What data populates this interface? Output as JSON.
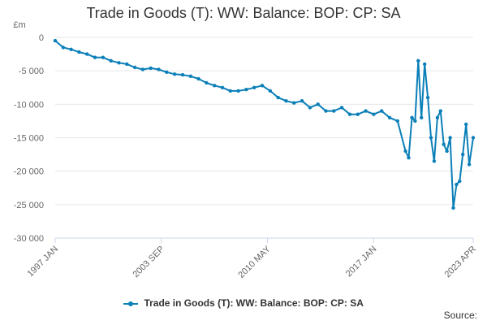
{
  "chart_data": {
    "type": "line",
    "title": "Trade in Goods (T): WW: Balance: BOP: CP: SA",
    "unit_label": "£m",
    "xlabel": "",
    "ylabel": "£m",
    "ylim": [
      -30000,
      0
    ],
    "yticks": [
      0,
      -5000,
      -10000,
      -15000,
      -20000,
      -25000,
      -30000
    ],
    "ytick_labels": [
      "0",
      "-5 000",
      "-10 000",
      "-15 000",
      "-20 000",
      "-25 000",
      "-30 000"
    ],
    "xlim": [
      1997.0,
      2023.25
    ],
    "xticks": [
      1997.0,
      2003.67,
      2010.33,
      2017.0,
      2023.25
    ],
    "xtick_labels": [
      "1997 JAN",
      "2003 SEP",
      "2010 MAY",
      "2017 JAN",
      "2023 APR"
    ],
    "legend": "Trade in Goods (T): WW: Balance: BOP: CP: SA",
    "legend_position": "bottom",
    "source_label": "Source:",
    "grid": true,
    "series": [
      {
        "name": "Trade in Goods (T): WW: Balance: BOP: CP: SA",
        "color": "#0a7fb8",
        "x": [
          1997.0,
          1997.5,
          1998.0,
          1998.5,
          1999.0,
          1999.5,
          2000.0,
          2000.5,
          2001.0,
          2001.5,
          2002.0,
          2002.5,
          2003.0,
          2003.5,
          2004.0,
          2004.5,
          2005.0,
          2005.5,
          2006.0,
          2006.5,
          2007.0,
          2007.5,
          2008.0,
          2008.5,
          2009.0,
          2009.5,
          2010.0,
          2010.5,
          2011.0,
          2011.5,
          2012.0,
          2012.5,
          2013.0,
          2013.5,
          2014.0,
          2014.5,
          2015.0,
          2015.5,
          2016.0,
          2016.5,
          2017.0,
          2017.5,
          2018.0,
          2018.5,
          2019.0,
          2019.2,
          2019.4,
          2019.6,
          2019.8,
          2020.0,
          2020.2,
          2020.4,
          2020.6,
          2020.8,
          2021.0,
          2021.2,
          2021.4,
          2021.6,
          2021.8,
          2022.0,
          2022.2,
          2022.4,
          2022.6,
          2022.8,
          2023.0,
          2023.25
        ],
        "values": [
          -500,
          -1500,
          -1800,
          -2200,
          -2500,
          -3000,
          -3000,
          -3500,
          -3800,
          -4000,
          -4500,
          -4800,
          -4600,
          -4800,
          -5200,
          -5500,
          -5600,
          -5800,
          -6200,
          -6800,
          -7200,
          -7500,
          -8000,
          -8000,
          -7800,
          -7500,
          -7200,
          -8000,
          -9000,
          -9500,
          -9800,
          -9500,
          -10500,
          -10000,
          -11000,
          -11000,
          -10500,
          -11500,
          -11500,
          -11000,
          -11500,
          -11000,
          -12000,
          -12500,
          -17000,
          -18000,
          -12000,
          -12500,
          -3500,
          -12000,
          -4000,
          -9000,
          -15000,
          -18500,
          -12000,
          -11000,
          -16000,
          -17000,
          -15000,
          -25500,
          -22000,
          -21500,
          -17500,
          -13000,
          -19000,
          -15000
        ]
      }
    ]
  }
}
